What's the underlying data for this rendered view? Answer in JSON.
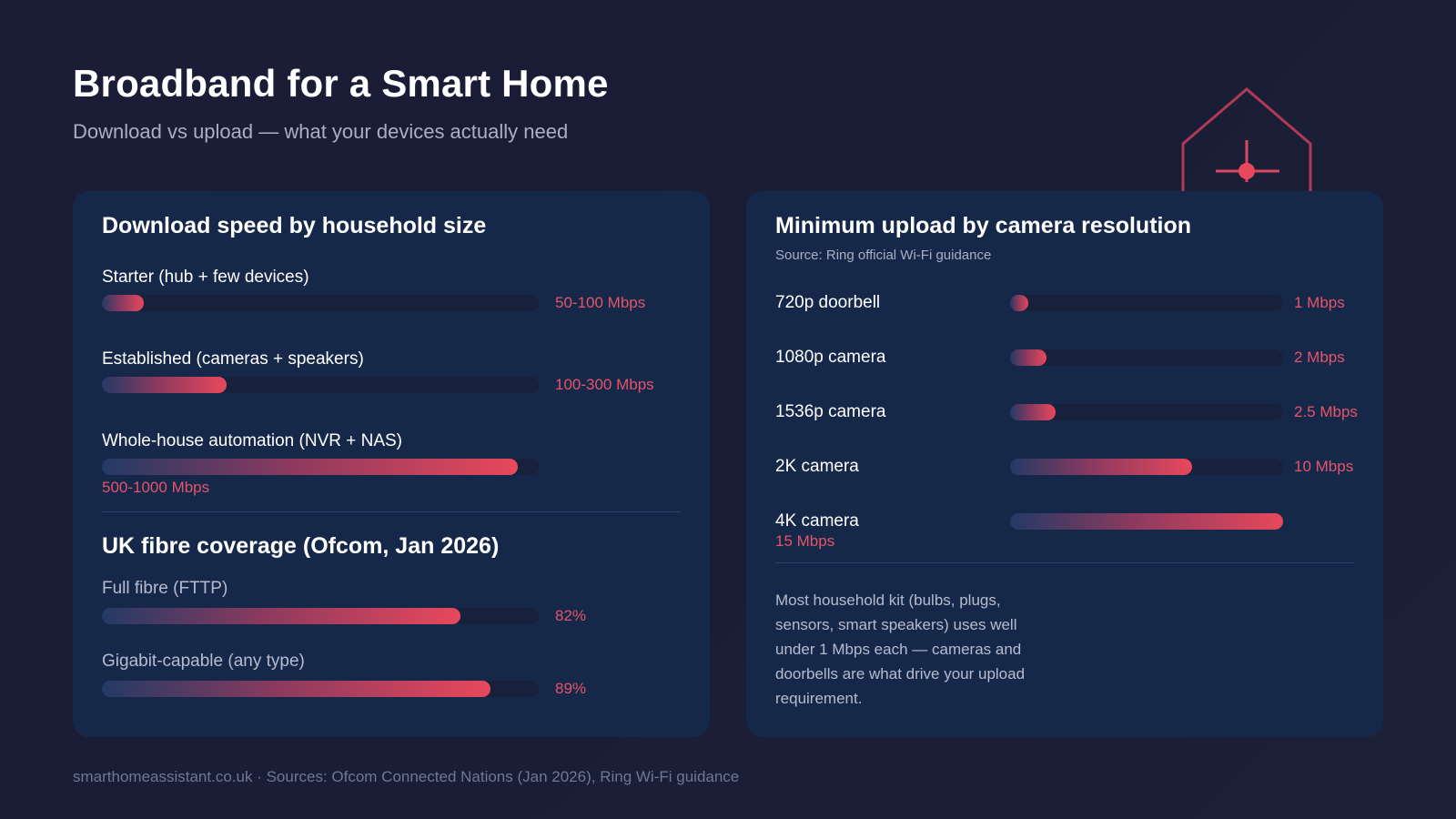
{
  "title": "Broadband for a Smart Home",
  "subtitle": "Download vs upload — what your devices actually need",
  "accent_color": "#e8485c",
  "icon": "smart-home-house-icon",
  "chart_data": [
    {
      "type": "bar",
      "orientation": "horizontal",
      "title": "Download speed by household size",
      "unit": "Mbps",
      "categories": [
        "Starter (hub + few devices)",
        "Established (cameras + speakers)",
        "Whole-house automation (NVR + NAS)"
      ],
      "value_labels": [
        "50-100 Mbps",
        "100-300 Mbps",
        "500-1000 Mbps"
      ],
      "ranges": [
        [
          50,
          100
        ],
        [
          100,
          300
        ],
        [
          500,
          1000
        ]
      ],
      "values": [
        100,
        300,
        1000
      ],
      "xlim": [
        0,
        1050
      ]
    },
    {
      "type": "bar",
      "orientation": "horizontal",
      "title": "UK fibre coverage (Ofcom, Jan 2026)",
      "unit": "%",
      "categories": [
        "Full fibre (FTTP)",
        "Gigabit-capable (any type)"
      ],
      "value_labels": [
        "82%",
        "89%"
      ],
      "values": [
        82,
        89
      ],
      "xlim": [
        0,
        100
      ]
    },
    {
      "type": "bar",
      "orientation": "horizontal",
      "title": "Minimum upload by camera resolution",
      "subtitle": "Source: Ring official Wi-Fi guidance",
      "unit": "Mbps",
      "categories": [
        "720p doorbell",
        "1080p camera",
        "1536p camera",
        "2K camera",
        "4K camera"
      ],
      "value_labels": [
        "1 Mbps",
        "2 Mbps",
        "2.5 Mbps",
        "10 Mbps",
        "15 Mbps"
      ],
      "values": [
        1,
        2,
        2.5,
        10,
        15
      ],
      "xlim": [
        0,
        15
      ]
    }
  ],
  "note": "Most household kit (bulbs, plugs, sensors, smart speakers) uses well under 1 Mbps each — cameras and doorbells are what drive your upload requirement.",
  "footer": "smarthomeassistant.co.uk · Sources: Ofcom Connected Nations (Jan 2026), Ring Wi-Fi guidance"
}
